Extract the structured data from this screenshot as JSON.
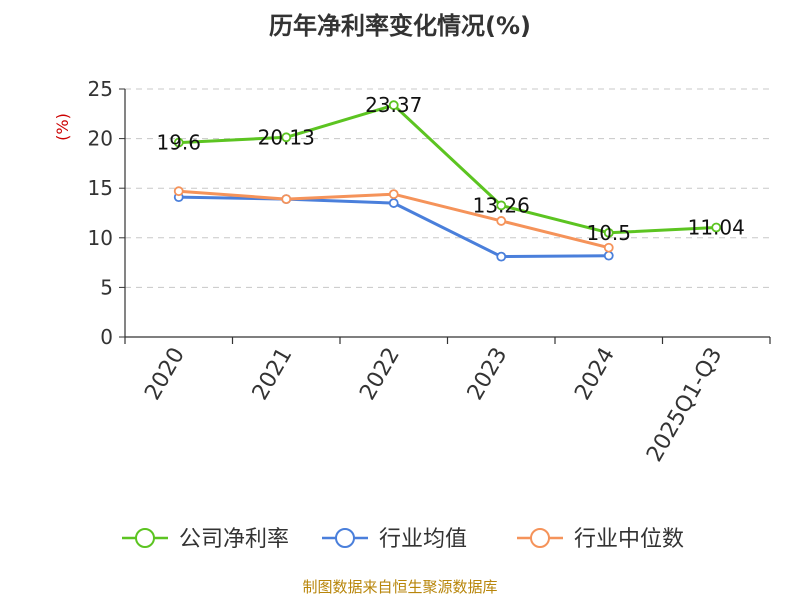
{
  "chart_data": {
    "type": "line",
    "title": "历年净利率变化情况(%)",
    "ylabel": "(%)",
    "xlabel": "",
    "ylim": [
      0,
      25
    ],
    "yticks": [
      0,
      5,
      10,
      15,
      20,
      25
    ],
    "grid": true,
    "legend_position": "bottom",
    "categories": [
      "2020",
      "2021",
      "2022",
      "2023",
      "2024",
      "2025Q1-Q3"
    ],
    "series": [
      {
        "name": "公司净利率",
        "color": "#5cc421",
        "values": [
          19.6,
          20.13,
          23.37,
          13.26,
          10.5,
          11.04
        ],
        "labels": [
          "19.6",
          "20.13",
          "23.37",
          "13.26",
          "10.5",
          "11.04"
        ]
      },
      {
        "name": "行业均值",
        "color": "#4a7fdb",
        "values": [
          14.1,
          13.9,
          13.5,
          8.1,
          8.2,
          null
        ]
      },
      {
        "name": "行业中位数",
        "color": "#f5935a",
        "values": [
          14.7,
          13.9,
          14.4,
          11.7,
          9.0,
          null
        ]
      }
    ]
  },
  "footer": {
    "source": "制图数据来自恒生聚源数据库"
  }
}
